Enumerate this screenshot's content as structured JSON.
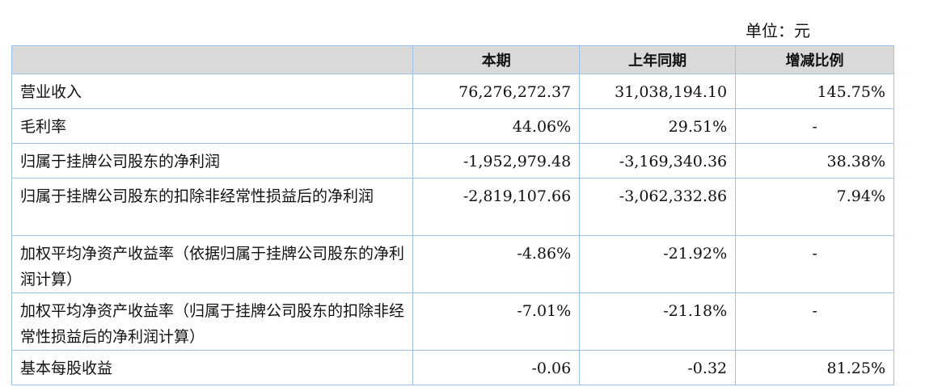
{
  "unit_label": "单位：元",
  "headers": [
    "",
    "本期",
    "上年同期",
    "增减比例"
  ],
  "rows": [
    {
      "label": "营业收入",
      "current": "76,276,272.37",
      "prior": "31,038,194.10",
      "change": "145.75%"
    },
    {
      "label": "毛利率",
      "current": "44.06%",
      "prior": "29.51%",
      "change": "-"
    },
    {
      "label": "归属于挂牌公司股东的净利润",
      "current": "-1,952,979.48",
      "prior": "-3,169,340.36",
      "change": "38.38%"
    },
    {
      "label": "归属于挂牌公司股东的扣除非经常性损益后的净利润",
      "current": "-2,819,107.66",
      "prior": "-3,062,332.86",
      "change": "7.94%"
    },
    {
      "label": "加权平均净资产收益率（依据归属于挂牌公司股东的净利润计算）",
      "current": "-4.86%",
      "prior": "-21.92%",
      "change": "-"
    },
    {
      "label": "加权平均净资产收益率（归属于挂牌公司股东的扣除非经常性损益后的净利润计算）",
      "current": "-7.01%",
      "prior": "-21.18%",
      "change": "-"
    },
    {
      "label": "基本每股收益",
      "current": "-0.06",
      "prior": "-0.32",
      "change": "81.25%"
    }
  ]
}
